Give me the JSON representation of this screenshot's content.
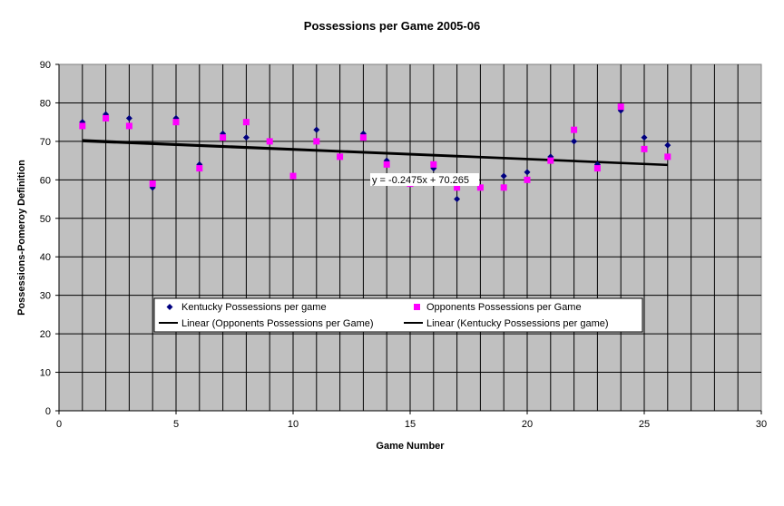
{
  "chart_data": {
    "type": "scatter",
    "title": "Possessions per Game 2005-06",
    "xlabel": "Game Number",
    "ylabel": "Possessions-Pomeroy Definition",
    "xlim": [
      0,
      30
    ],
    "ylim": [
      0,
      90
    ],
    "x_ticks": [
      0,
      5,
      10,
      15,
      20,
      25,
      30
    ],
    "y_ticks": [
      0,
      10,
      20,
      30,
      40,
      50,
      60,
      70,
      80,
      90
    ],
    "grid": true,
    "plot_background": "#c0c0c0",
    "legend_position": "bottom-center",
    "series": [
      {
        "name": "Kentucky Possessions per game",
        "marker": "diamond",
        "color": "#000080",
        "x": [
          1,
          2,
          3,
          4,
          5,
          6,
          7,
          8,
          9,
          10,
          11,
          12,
          13,
          14,
          15,
          16,
          17,
          18,
          19,
          20,
          21,
          22,
          23,
          24,
          25,
          26
        ],
        "y": [
          75,
          77,
          76,
          58,
          76,
          64,
          72,
          71,
          70,
          61,
          73,
          66,
          72,
          65,
          59,
          63,
          55,
          58,
          61,
          62,
          66,
          70,
          64,
          78,
          71,
          69
        ]
      },
      {
        "name": "Opponents Possessions per Game",
        "marker": "square",
        "color": "#ff00ff",
        "x": [
          1,
          2,
          3,
          4,
          5,
          6,
          7,
          8,
          9,
          10,
          11,
          12,
          13,
          14,
          15,
          16,
          17,
          18,
          19,
          20,
          21,
          22,
          23,
          24,
          25,
          26
        ],
        "y": [
          74,
          76,
          74,
          59,
          75,
          63,
          71,
          75,
          70,
          61,
          70,
          66,
          71,
          64,
          59,
          64,
          58,
          58,
          58,
          60,
          65,
          73,
          63,
          79,
          68,
          66
        ]
      }
    ],
    "trendlines": [
      {
        "name": "Linear (Opponents Possessions per Game)",
        "slope": -0.2475,
        "intercept": 70.265,
        "x_range": [
          1,
          26
        ],
        "color": "#000000"
      },
      {
        "name": "Linear (Kentucky Possessions per game)",
        "slope": -0.256,
        "intercept": 70.6,
        "x_range": [
          1,
          26
        ],
        "color": "#000000"
      }
    ],
    "annotation": "y = -0.2475x + 70.265",
    "annotation_at": {
      "x": 17.5,
      "y": 60
    }
  }
}
